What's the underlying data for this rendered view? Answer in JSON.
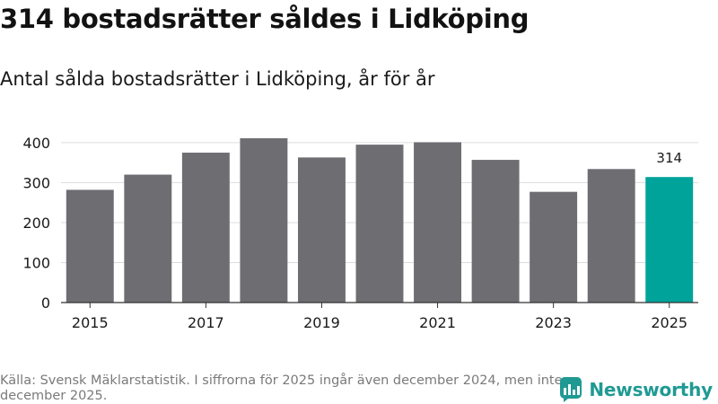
{
  "header": {
    "title": "314 bostadsrätter såldes i Lidköping",
    "subtitle": "Antal sålda bostadsrätter i Lidköping, år för år"
  },
  "footer": {
    "source": "Källa: Svensk Mäklarstatistik. I siffrorna för 2025 ingår även december 2024, men inte december 2025.",
    "brand": "Newsworthy"
  },
  "colors": {
    "bar": "#6e6d72",
    "highlight": "#00a39a",
    "grid": "#dcdcdc",
    "axis": "#333333",
    "brand": "#1f9a93"
  },
  "chart_data": {
    "type": "bar",
    "title": "314 bostadsrätter såldes i Lidköping",
    "subtitle": "Antal sålda bostadsrätter i Lidköping, år för år",
    "xlabel": "",
    "ylabel": "",
    "categories": [
      "2015",
      "2016",
      "2017",
      "2018",
      "2019",
      "2020",
      "2021",
      "2022",
      "2023",
      "2024",
      "2025"
    ],
    "values": [
      282,
      320,
      375,
      411,
      363,
      395,
      401,
      357,
      277,
      334,
      314
    ],
    "highlight_index": 10,
    "highlight_label": "314",
    "ylim": [
      0,
      420
    ],
    "yticks": [
      0,
      100,
      200,
      300,
      400
    ],
    "xtick_labels": [
      "2015",
      "2017",
      "2019",
      "2021",
      "2023",
      "2025"
    ],
    "grid": true
  }
}
